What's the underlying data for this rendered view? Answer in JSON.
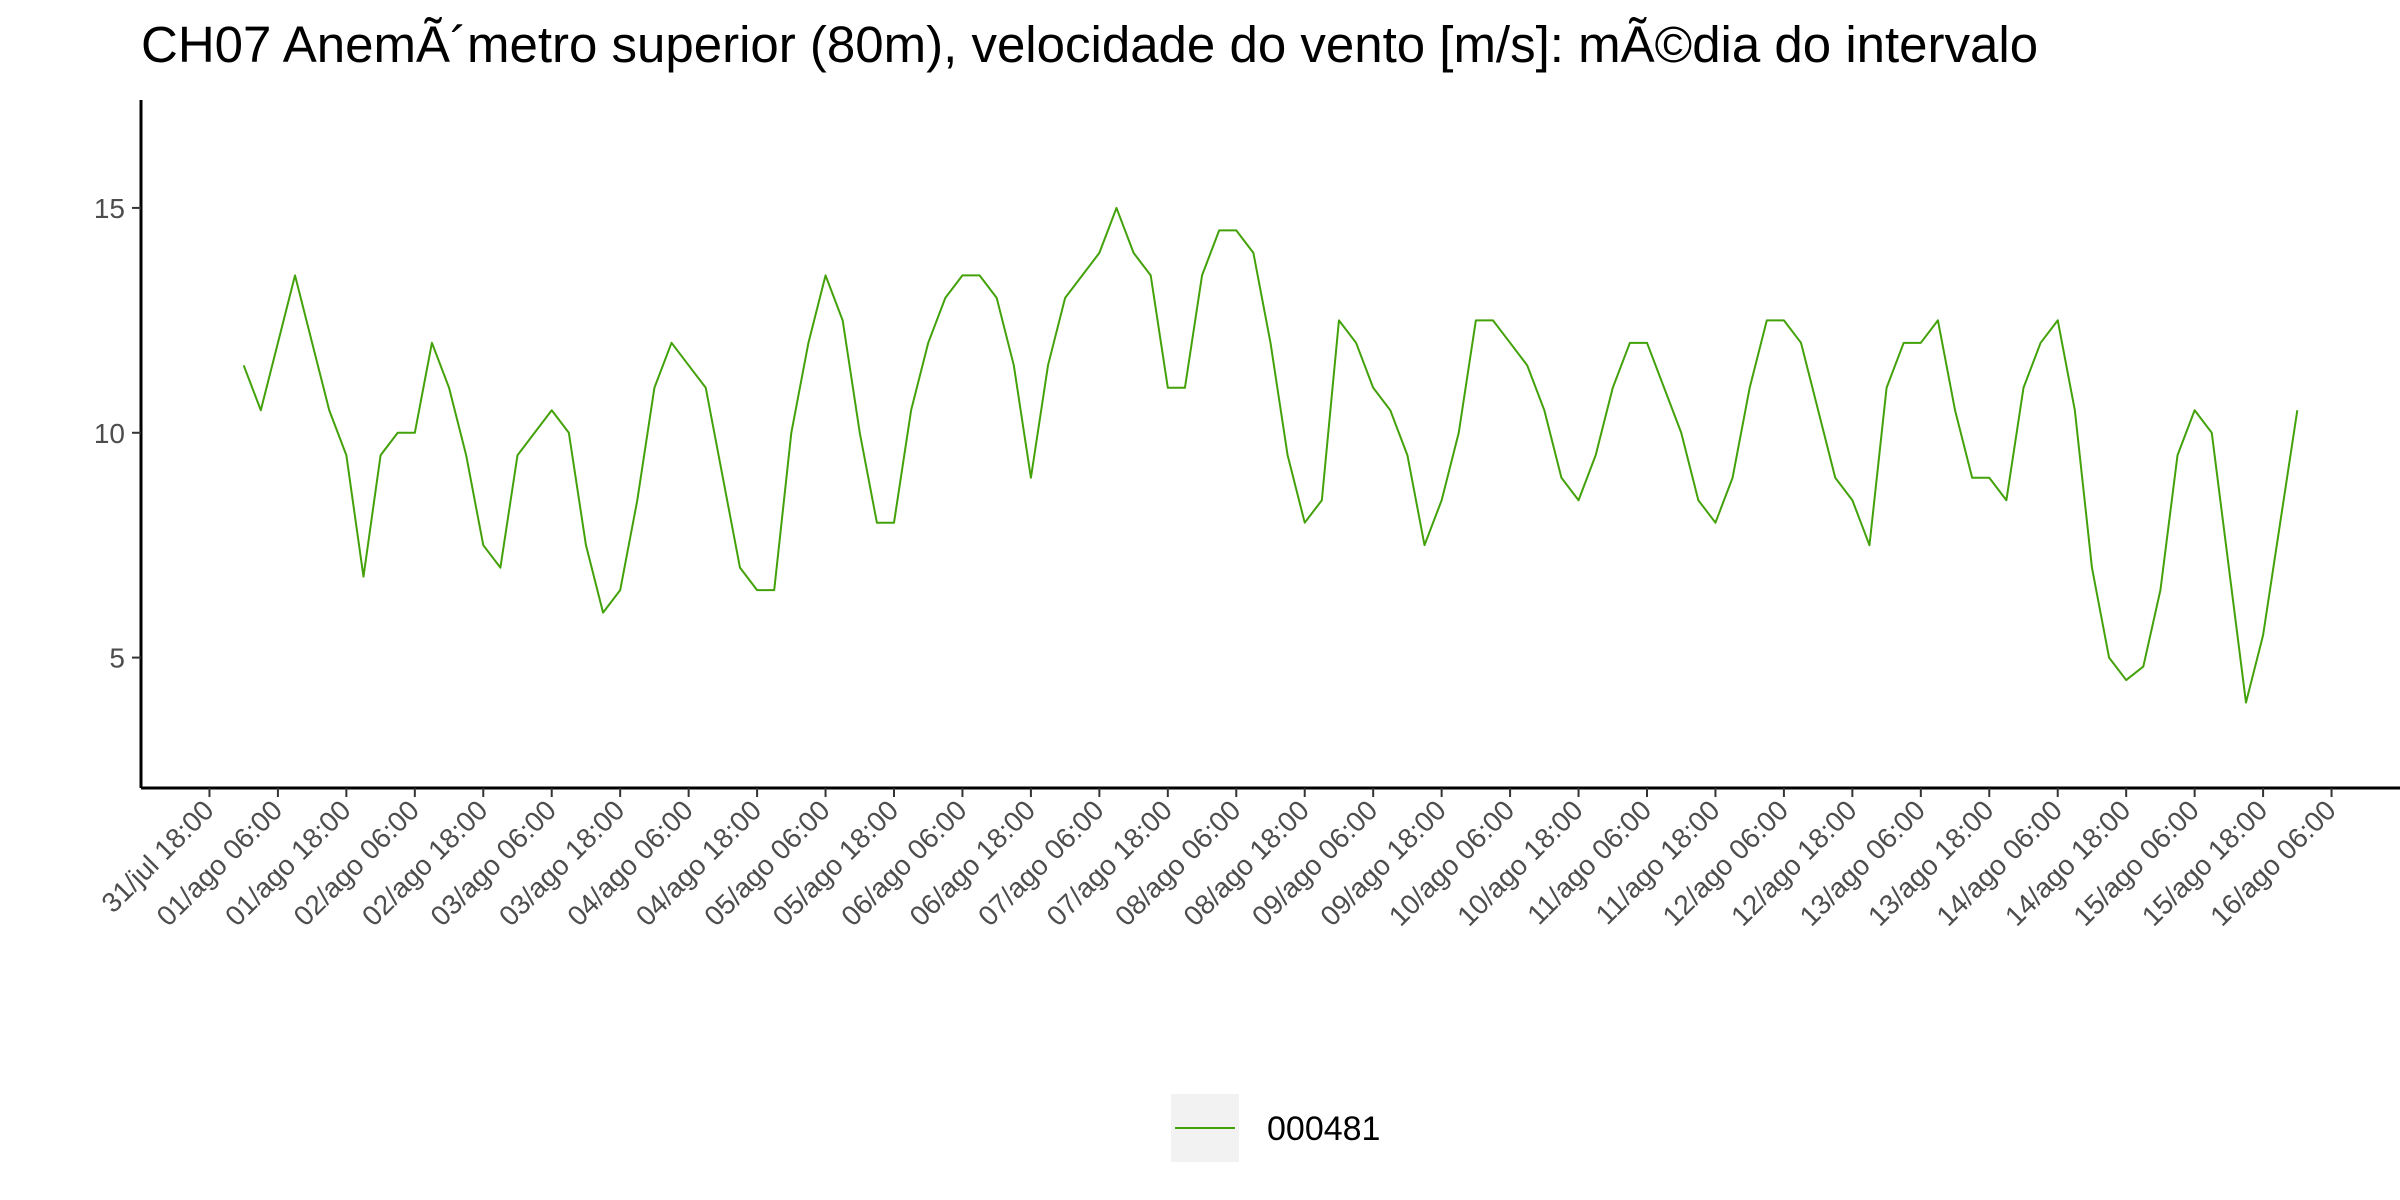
{
  "chart_data": {
    "type": "line",
    "title": "CH07 AnemÃ´metro superior (80m), velocidade do vento [m/s]: mÃ©dia do intervalo",
    "x": [
      "01/ago 00:00",
      "01/ago 03:00",
      "01/ago 06:00",
      "01/ago 09:00",
      "01/ago 12:00",
      "01/ago 15:00",
      "01/ago 18:00",
      "01/ago 21:00",
      "02/ago 00:00",
      "02/ago 03:00",
      "02/ago 06:00",
      "02/ago 09:00",
      "02/ago 12:00",
      "02/ago 15:00",
      "02/ago 18:00",
      "02/ago 21:00",
      "03/ago 00:00",
      "03/ago 03:00",
      "03/ago 06:00",
      "03/ago 09:00",
      "03/ago 12:00",
      "03/ago 15:00",
      "03/ago 18:00",
      "03/ago 21:00",
      "04/ago 00:00",
      "04/ago 03:00",
      "04/ago 06:00",
      "04/ago 09:00",
      "04/ago 12:00",
      "04/ago 15:00",
      "04/ago 18:00",
      "04/ago 21:00",
      "05/ago 00:00",
      "05/ago 03:00",
      "05/ago 06:00",
      "05/ago 09:00",
      "05/ago 12:00",
      "05/ago 15:00",
      "05/ago 18:00",
      "05/ago 21:00",
      "06/ago 00:00",
      "06/ago 03:00",
      "06/ago 06:00",
      "06/ago 09:00",
      "06/ago 12:00",
      "06/ago 15:00",
      "06/ago 18:00",
      "06/ago 21:00",
      "07/ago 00:00",
      "07/ago 03:00",
      "07/ago 06:00",
      "07/ago 09:00",
      "07/ago 12:00",
      "07/ago 15:00",
      "07/ago 18:00",
      "07/ago 21:00",
      "08/ago 00:00",
      "08/ago 03:00",
      "08/ago 06:00",
      "08/ago 09:00",
      "08/ago 12:00",
      "08/ago 15:00",
      "08/ago 18:00",
      "08/ago 21:00",
      "09/ago 00:00",
      "09/ago 03:00",
      "09/ago 06:00",
      "09/ago 09:00",
      "09/ago 12:00",
      "09/ago 15:00",
      "09/ago 18:00",
      "09/ago 21:00",
      "10/ago 00:00",
      "10/ago 03:00",
      "10/ago 06:00",
      "10/ago 09:00",
      "10/ago 12:00",
      "10/ago 15:00",
      "10/ago 18:00",
      "10/ago 21:00",
      "11/ago 00:00",
      "11/ago 03:00",
      "11/ago 06:00",
      "11/ago 09:00",
      "11/ago 12:00",
      "11/ago 15:00",
      "11/ago 18:00",
      "11/ago 21:00",
      "12/ago 00:00",
      "12/ago 03:00",
      "12/ago 06:00",
      "12/ago 09:00",
      "12/ago 12:00",
      "12/ago 15:00",
      "12/ago 18:00",
      "12/ago 21:00",
      "13/ago 00:00",
      "13/ago 03:00",
      "13/ago 06:00",
      "13/ago 09:00",
      "13/ago 12:00",
      "13/ago 15:00",
      "13/ago 18:00",
      "13/ago 21:00",
      "14/ago 00:00",
      "14/ago 03:00",
      "14/ago 06:00",
      "14/ago 09:00",
      "14/ago 12:00",
      "14/ago 15:00",
      "14/ago 18:00",
      "14/ago 21:00",
      "15/ago 00:00",
      "15/ago 03:00",
      "15/ago 06:00",
      "15/ago 09:00",
      "15/ago 12:00",
      "15/ago 15:00",
      "15/ago 18:00",
      "15/ago 21:00",
      "16/ago 00:00"
    ],
    "series": [
      {
        "name": "000481",
        "color": "#43a10a",
        "values": [
          11.5,
          10.5,
          12,
          13.5,
          12,
          10.5,
          9.5,
          6.8,
          9.5,
          10,
          10,
          12,
          11,
          9.5,
          7.5,
          7,
          9.5,
          10,
          10.5,
          10,
          7.5,
          6,
          6.5,
          8.5,
          11,
          12,
          11.5,
          11,
          9,
          7,
          6.5,
          6.5,
          10,
          12,
          13.5,
          12.5,
          10,
          8,
          8,
          10.5,
          12,
          13,
          13.5,
          13.5,
          13,
          11.5,
          9,
          11.5,
          13,
          13.5,
          14,
          15,
          14,
          13.5,
          11,
          11,
          13.5,
          14.5,
          14.5,
          14,
          12,
          9.5,
          8,
          8.5,
          12.5,
          12,
          11,
          10.5,
          9.5,
          7.5,
          8.5,
          10,
          12.5,
          12.5,
          12,
          11.5,
          10.5,
          9,
          8.5,
          9.5,
          11,
          12,
          12,
          11,
          10,
          8.5,
          8,
          9,
          11,
          12.5,
          12.5,
          12,
          10.5,
          9,
          8.5,
          7.5,
          11,
          12,
          12,
          12.5,
          10.5,
          9,
          9,
          8.5,
          11,
          12,
          12.5,
          10.5,
          7,
          5,
          4.5,
          4.8,
          6.5,
          9.5,
          10.5,
          10,
          7,
          4,
          5.5,
          8,
          10.5
        ]
      }
    ],
    "xlim": [
      "31/jul 06:00",
      "16/ago 18:00"
    ],
    "xticks": [
      "31/jul 18:00",
      "01/ago 06:00",
      "01/ago 18:00",
      "02/ago 06:00",
      "02/ago 18:00",
      "03/ago 06:00",
      "03/ago 18:00",
      "04/ago 06:00",
      "04/ago 18:00",
      "05/ago 06:00",
      "05/ago 18:00",
      "06/ago 06:00",
      "06/ago 18:00",
      "07/ago 06:00",
      "07/ago 18:00",
      "08/ago 06:00",
      "08/ago 18:00",
      "09/ago 06:00",
      "09/ago 18:00",
      "10/ago 06:00",
      "10/ago 18:00",
      "11/ago 06:00",
      "11/ago 18:00",
      "12/ago 06:00",
      "12/ago 18:00",
      "13/ago 06:00",
      "13/ago 18:00",
      "14/ago 06:00",
      "14/ago 18:00",
      "15/ago 06:00",
      "15/ago 18:00",
      "16/ago 06:00"
    ],
    "ylim": [
      2.1,
      17.4
    ],
    "yticks": [
      5,
      10,
      15
    ],
    "grid": false,
    "legend": "bottom"
  }
}
